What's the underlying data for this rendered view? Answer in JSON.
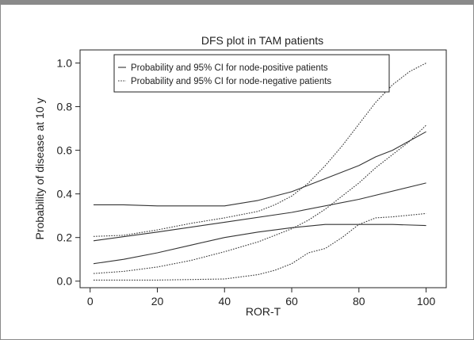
{
  "chart_data": {
    "type": "line",
    "title": "DFS plot in TAM patients",
    "xlabel": "ROR-T",
    "ylabel": "Probability of disease at 10 y",
    "xlim": [
      -3,
      106
    ],
    "ylim": [
      -0.03,
      1.06
    ],
    "xticks": [
      "0",
      "20",
      "40",
      "60",
      "80",
      "100"
    ],
    "yticks": [
      "0.0",
      "0.2",
      "0.4",
      "0.6",
      "0.8",
      "1.0"
    ],
    "grid": false,
    "legend_position": "top-left",
    "legend": [
      "Probability and 95% CI for node-positive patients",
      "Probability and 95% CI for node-negative patients"
    ],
    "series": [
      {
        "name": "Probability and 95% CI for node-positive patients",
        "style": "solid",
        "lines": [
          {
            "role": "upper",
            "x": [
              1,
              10,
              20,
              30,
              40,
              50,
              60,
              65,
              70,
              80,
              85,
              90,
              100
            ],
            "y": [
              0.35,
              0.35,
              0.345,
              0.345,
              0.345,
              0.37,
              0.41,
              0.44,
              0.47,
              0.53,
              0.57,
              0.6,
              0.685
            ]
          },
          {
            "role": "estimate",
            "x": [
              1,
              20,
              40,
              60,
              80,
              100
            ],
            "y": [
              0.185,
              0.225,
              0.27,
              0.315,
              0.375,
              0.45
            ]
          },
          {
            "role": "lower",
            "x": [
              1,
              10,
              20,
              30,
              40,
              50,
              60,
              70,
              80,
              90,
              100
            ],
            "y": [
              0.08,
              0.1,
              0.13,
              0.165,
              0.2,
              0.225,
              0.245,
              0.26,
              0.26,
              0.26,
              0.255
            ]
          }
        ]
      },
      {
        "name": "Probability and 95% CI for node-negative patients",
        "style": "dotted",
        "lines": [
          {
            "role": "upper",
            "x": [
              1,
              10,
              20,
              30,
              40,
              50,
              55,
              60,
              65,
              70,
              75,
              80,
              85,
              90,
              95,
              100
            ],
            "y": [
              0.205,
              0.21,
              0.235,
              0.265,
              0.29,
              0.32,
              0.35,
              0.39,
              0.45,
              0.53,
              0.62,
              0.72,
              0.82,
              0.9,
              0.96,
              1.0
            ]
          },
          {
            "role": "estimate",
            "x": [
              1,
              10,
              20,
              30,
              40,
              50,
              60,
              65,
              70,
              75,
              80,
              85,
              90,
              95,
              100
            ],
            "y": [
              0.035,
              0.045,
              0.065,
              0.095,
              0.135,
              0.18,
              0.24,
              0.28,
              0.33,
              0.39,
              0.45,
              0.52,
              0.58,
              0.64,
              0.715
            ]
          },
          {
            "role": "lower",
            "x": [
              1,
              20,
              40,
              50,
              55,
              60,
              65,
              70,
              75,
              80,
              85,
              90,
              100
            ],
            "y": [
              0.005,
              0.005,
              0.01,
              0.03,
              0.05,
              0.08,
              0.13,
              0.15,
              0.2,
              0.26,
              0.29,
              0.295,
              0.31
            ]
          }
        ]
      }
    ]
  }
}
